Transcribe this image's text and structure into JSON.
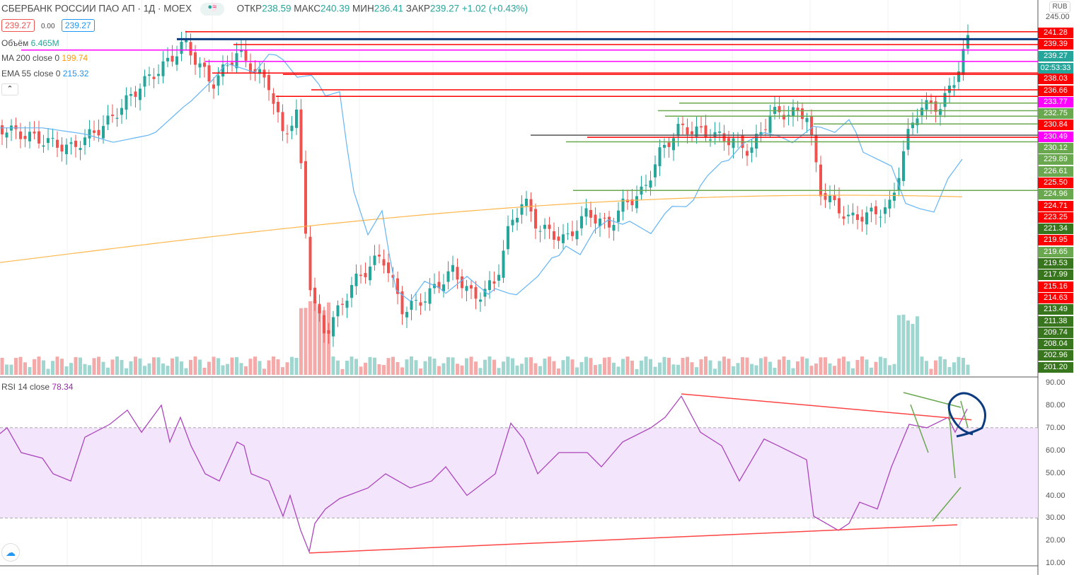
{
  "header": {
    "symbol": "СБЕРБАНК РОССИИ ПАО АП · 1Д · MOEX",
    "open_label": "ОТКР",
    "open": "238.59",
    "high_label": "МАКС",
    "high": "240.39",
    "low_label": "МИН",
    "low": "236.41",
    "close_label": "ЗАКР",
    "close": "239.27",
    "change": "+1.02 (+0.43%)",
    "bid": "239.27",
    "spread": "0.00",
    "ask": "239.27"
  },
  "indicators": {
    "volume_label": "Объём",
    "volume": "6.465M",
    "ma_label": "MA 200 close 0",
    "ma": "199.74",
    "ema_label": "EMA 55 close 0",
    "ema": "215.32",
    "rsi_label": "RSI 14 close",
    "rsi": "78.34"
  },
  "axis": {
    "currency": "RUB",
    "top": "245.00",
    "countdown": "02:53:33",
    "labels": [
      [
        "241.28",
        "#ff0000"
      ],
      [
        "239.39",
        "#ff0000"
      ],
      [
        "239.27",
        "#26a69a"
      ],
      [
        "238.03",
        "#ff0000"
      ],
      [
        "236.66",
        "#ff0000"
      ],
      [
        "233.77",
        "#ff00ff"
      ],
      [
        "232.75",
        "#6aa84f"
      ],
      [
        "230.84",
        "#ff0000"
      ],
      [
        "230.49",
        "#ff00ff"
      ],
      [
        "230.12",
        "#6aa84f"
      ],
      [
        "229.89",
        "#6aa84f"
      ],
      [
        "226.61",
        "#6aa84f"
      ],
      [
        "225.50",
        "#ff0000"
      ],
      [
        "224.96",
        "#6aa84f"
      ],
      [
        "224.71",
        "#ff0000"
      ],
      [
        "223.25",
        "#ff0000"
      ],
      [
        "221.34",
        "#38761d"
      ],
      [
        "219.95",
        "#ff0000"
      ],
      [
        "219.65",
        "#6aa84f"
      ],
      [
        "219.53",
        "#38761d"
      ],
      [
        "217.99",
        "#38761d"
      ],
      [
        "215.16",
        "#ff0000"
      ],
      [
        "214.63",
        "#ff0000"
      ],
      [
        "213.49",
        "#38761d"
      ],
      [
        "211.38",
        "#38761d"
      ],
      [
        "209.74",
        "#38761d"
      ],
      [
        "208.04",
        "#38761d"
      ],
      [
        "202.96",
        "#38761d"
      ],
      [
        "201.20",
        "#38761d"
      ]
    ],
    "rsi_ticks": [
      "90.00",
      "80.00",
      "70.00",
      "60.00",
      "50.00",
      "40.00",
      "30.00",
      "20.00",
      "10.00"
    ]
  },
  "chart_data": {
    "type": "candlestick",
    "ylim": [
      155,
      245
    ],
    "close_path": [
      [
        0,
        217
      ],
      [
        100,
        211.8
      ],
      [
        150,
        218
      ],
      [
        200,
        228
      ],
      [
        240,
        234
      ],
      [
        260,
        238.6
      ],
      [
        300,
        228
      ],
      [
        335,
        236
      ],
      [
        380,
        228
      ],
      [
        400,
        215
      ],
      [
        420,
        220.7
      ],
      [
        430,
        195.7
      ],
      [
        440,
        174
      ],
      [
        460,
        165
      ],
      [
        500,
        178
      ],
      [
        540,
        185
      ],
      [
        570,
        170.7
      ],
      [
        600,
        174
      ],
      [
        640,
        181
      ],
      [
        670,
        174
      ],
      [
        700,
        178
      ],
      [
        720,
        192
      ],
      [
        740,
        199
      ],
      [
        760,
        192
      ],
      [
        800,
        188.6
      ],
      [
        830,
        195.7
      ],
      [
        860,
        192
      ],
      [
        880,
        197.5
      ],
      [
        910,
        201
      ],
      [
        930,
        210
      ],
      [
        960,
        217
      ],
      [
        990,
        216
      ],
      [
        1040,
        213.6
      ],
      [
        1060,
        211
      ],
      [
        1090,
        220.7
      ],
      [
        1140,
        220.7
      ],
      [
        1160,
        201
      ],
      [
        1200,
        194
      ],
      [
        1240,
        195.7
      ],
      [
        1260,
        197.5
      ],
      [
        1280,
        213.6
      ],
      [
        1300,
        222.5
      ],
      [
        1330,
        222.5
      ],
      [
        1350,
        229.6
      ],
      [
        1368,
        239.27
      ]
    ],
    "rsi_path": [
      [
        0,
        67.4
      ],
      [
        10,
        70
      ],
      [
        30,
        59
      ],
      [
        60,
        56.5
      ],
      [
        75,
        49.6
      ],
      [
        100,
        46.4
      ],
      [
        120,
        65.8
      ],
      [
        155,
        71.5
      ],
      [
        180,
        77.8
      ],
      [
        200,
        68
      ],
      [
        228,
        80
      ],
      [
        240,
        63.7
      ],
      [
        255,
        74.6
      ],
      [
        270,
        62
      ],
      [
        290,
        49.6
      ],
      [
        310,
        46.4
      ],
      [
        335,
        63.7
      ],
      [
        345,
        62
      ],
      [
        355,
        49.6
      ],
      [
        380,
        46.4
      ],
      [
        400,
        30.8
      ],
      [
        410,
        40
      ],
      [
        425,
        24.5
      ],
      [
        437,
        15
      ],
      [
        445,
        27.6
      ],
      [
        460,
        34
      ],
      [
        480,
        38.6
      ],
      [
        520,
        43.3
      ],
      [
        545,
        49.6
      ],
      [
        580,
        43.3
      ],
      [
        610,
        46.4
      ],
      [
        630,
        52.7
      ],
      [
        660,
        40
      ],
      [
        700,
        49.6
      ],
      [
        722,
        72
      ],
      [
        740,
        65
      ],
      [
        760,
        49.6
      ],
      [
        790,
        59
      ],
      [
        830,
        59
      ],
      [
        850,
        52.7
      ],
      [
        880,
        63.7
      ],
      [
        920,
        70
      ],
      [
        940,
        74.6
      ],
      [
        963,
        84
      ],
      [
        990,
        68
      ],
      [
        1020,
        62
      ],
      [
        1045,
        46.4
      ],
      [
        1080,
        65
      ],
      [
        1100,
        62
      ],
      [
        1140,
        55.8
      ],
      [
        1150,
        30.8
      ],
      [
        1185,
        24.5
      ],
      [
        1200,
        27.6
      ],
      [
        1215,
        37
      ],
      [
        1240,
        34
      ],
      [
        1260,
        52.7
      ],
      [
        1285,
        71.5
      ],
      [
        1310,
        70
      ],
      [
        1340,
        74.6
      ],
      [
        1350,
        68
      ],
      [
        1367,
        78.34
      ]
    ],
    "rsi_bands": [
      30,
      70
    ],
    "ma200_last": 199.74,
    "ema55_last": 215.32
  }
}
